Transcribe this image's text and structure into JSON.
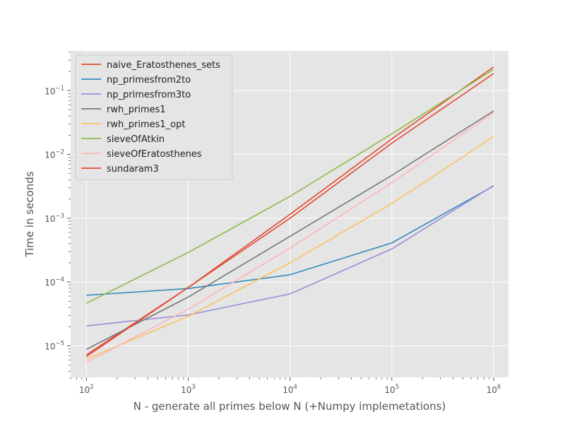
{
  "chart_data": {
    "type": "line",
    "title": "",
    "xlabel": "N - generate all primes below N (+Numpy implemetations)",
    "ylabel": "Time in seconds",
    "xscale": "log",
    "yscale": "log",
    "xlim": [
      70,
      1400000
    ],
    "ylim": [
      3.2e-06,
      0.42
    ],
    "grid": true,
    "legend_position": "top-left",
    "x": [
      100,
      1000,
      10000,
      100000,
      1000000
    ],
    "x_ticks": [
      {
        "base": "10",
        "exp": "2"
      },
      {
        "base": "10",
        "exp": "3"
      },
      {
        "base": "10",
        "exp": "4"
      },
      {
        "base": "10",
        "exp": "5"
      },
      {
        "base": "10",
        "exp": "6"
      }
    ],
    "y_ticks": [
      {
        "value": 1e-05,
        "base": "10",
        "exp": "−5"
      },
      {
        "value": 0.0001,
        "base": "10",
        "exp": "−4"
      },
      {
        "value": 0.001,
        "base": "10",
        "exp": "−3"
      },
      {
        "value": 0.01,
        "base": "10",
        "exp": "−2"
      },
      {
        "value": 0.1,
        "base": "10",
        "exp": "−1"
      }
    ],
    "series": [
      {
        "name": "naive_Eratosthenes_sets",
        "color": "#E24A33",
        "values": [
          7.2e-06,
          8.2e-05,
          0.00115,
          0.0175,
          0.235
        ]
      },
      {
        "name": "np_primesfrom2to",
        "color": "#348ABD",
        "values": [
          6.2e-05,
          7.9e-05,
          0.00013,
          0.00041,
          0.0032
        ]
      },
      {
        "name": "np_primesfrom3to",
        "color": "#988ED5",
        "values": [
          2.05e-05,
          3.05e-05,
          6.5e-05,
          0.00033,
          0.00325
        ]
      },
      {
        "name": "rwh_primes1",
        "color": "#777777",
        "values": [
          8.8e-06,
          5.8e-05,
          0.00052,
          0.0047,
          0.048
        ]
      },
      {
        "name": "rwh_primes1_opt",
        "color": "#FBC15E",
        "values": [
          6.2e-06,
          2.9e-05,
          0.0002,
          0.0017,
          0.019
        ]
      },
      {
        "name": "sieveOfAtkin",
        "color": "#8EBA42",
        "values": [
          4.65e-05,
          0.00029,
          0.0022,
          0.021,
          0.215
        ]
      },
      {
        "name": "sieveOfEratosthenes",
        "color": "#FFB5B8",
        "values": [
          5.5e-06,
          3.75e-05,
          0.00034,
          0.0036,
          0.045
        ]
      },
      {
        "name": "sundaram3",
        "color": "#E24A33",
        "values": [
          6.8e-06,
          8.2e-05,
          0.001,
          0.015,
          0.185
        ]
      }
    ]
  }
}
